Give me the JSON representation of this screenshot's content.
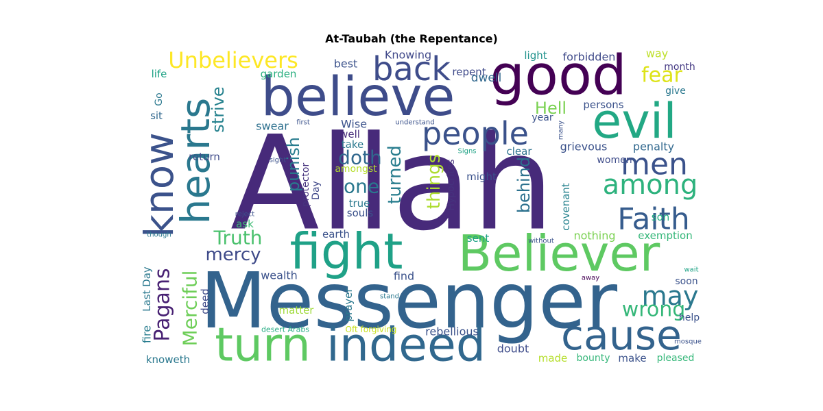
{
  "title": "At-Taubah (the Repentance)",
  "palette": "viridis",
  "words": [
    {
      "text": "Allah",
      "color": "#472a7a"
    },
    {
      "text": "Messenger",
      "color": "#33638d"
    },
    {
      "text": "believe",
      "color": "#3e4c8a"
    },
    {
      "text": "good",
      "color": "#440154"
    },
    {
      "text": "evil",
      "color": "#22a884"
    },
    {
      "text": "Believer",
      "color": "#5ec962"
    },
    {
      "text": "fight",
      "color": "#1fa187"
    },
    {
      "text": "indeed",
      "color": "#31688e"
    },
    {
      "text": "turn",
      "color": "#5ec962"
    },
    {
      "text": "cause",
      "color": "#33638d"
    },
    {
      "text": "hearts",
      "color": "#2a788e"
    },
    {
      "text": "know",
      "color": "#3b528b"
    },
    {
      "text": "back",
      "color": "#3e4c8a"
    },
    {
      "text": "people",
      "color": "#3b528b"
    },
    {
      "text": "men",
      "color": "#3b528b"
    },
    {
      "text": "among",
      "color": "#2db27d"
    },
    {
      "text": "Faith",
      "color": "#365c8d"
    },
    {
      "text": "may",
      "color": "#2a788e"
    },
    {
      "text": "Unbelievers",
      "color": "#fde725"
    },
    {
      "text": "fear",
      "color": "#dde318"
    },
    {
      "text": "wrong",
      "color": "#35b779"
    },
    {
      "text": "Pagans",
      "color": "#482173"
    },
    {
      "text": "Merciful",
      "color": "#6ece58"
    },
    {
      "text": "Truth",
      "color": "#4ac16d"
    },
    {
      "text": "mercy",
      "color": "#3e4a89"
    },
    {
      "text": "strive",
      "color": "#26828e"
    },
    {
      "text": "doth",
      "color": "#31688e"
    },
    {
      "text": "one",
      "color": "#2a788e"
    },
    {
      "text": "turned",
      "color": "#287d8e"
    },
    {
      "text": "punish",
      "color": "#287c8e"
    },
    {
      "text": "things",
      "color": "#addc30"
    },
    {
      "text": "behind",
      "color": "#2c718e"
    },
    {
      "text": "Hell",
      "color": "#7ad151"
    },
    {
      "text": "Knowing",
      "color": "#3f4889"
    },
    {
      "text": "best",
      "color": "#3b528b"
    },
    {
      "text": "garden",
      "color": "#29af7f"
    },
    {
      "text": "life",
      "color": "#20a386"
    },
    {
      "text": "Go",
      "color": "#2a788e"
    },
    {
      "text": "sit",
      "color": "#31688e"
    },
    {
      "text": "swear",
      "color": "#2d708e"
    },
    {
      "text": "Wise",
      "color": "#3b528b"
    },
    {
      "text": "well",
      "color": "#472c7a"
    },
    {
      "text": "take",
      "color": "#2a788e"
    },
    {
      "text": "amongst",
      "color": "#b5de2b"
    },
    {
      "text": "return",
      "color": "#3e4a89"
    },
    {
      "text": "protector",
      "color": "#46337e"
    },
    {
      "text": "Day",
      "color": "#3f4788"
    },
    {
      "text": "true",
      "color": "#2a788e"
    },
    {
      "text": "souls",
      "color": "#3b528b"
    },
    {
      "text": "ask",
      "color": "#3dbc74"
    },
    {
      "text": "dwell",
      "color": "#31688e"
    },
    {
      "text": "repent",
      "color": "#3e4989"
    },
    {
      "text": "light",
      "color": "#20928c"
    },
    {
      "text": "forbidden",
      "color": "#3e4989"
    },
    {
      "text": "way",
      "color": "#bddf26"
    },
    {
      "text": "month",
      "color": "#443983"
    },
    {
      "text": "give",
      "color": "#2a788e"
    },
    {
      "text": "persons",
      "color": "#3b528b"
    },
    {
      "text": "year",
      "color": "#3b528b"
    },
    {
      "text": "grievous",
      "color": "#3b528b"
    },
    {
      "text": "penalty",
      "color": "#31688e"
    },
    {
      "text": "clear",
      "color": "#2c718e"
    },
    {
      "text": "women",
      "color": "#3e4c8a"
    },
    {
      "text": "Hypocrites",
      "color": "#46337e"
    },
    {
      "text": "might",
      "color": "#3b528b"
    },
    {
      "text": "covenant",
      "color": "#26828e"
    },
    {
      "text": "son",
      "color": "#25ac82"
    },
    {
      "text": "nothing",
      "color": "#7ad151"
    },
    {
      "text": "exemption",
      "color": "#35b779"
    },
    {
      "text": "sent",
      "color": "#20a386"
    },
    {
      "text": "earth",
      "color": "#3b528b"
    },
    {
      "text": "wealth",
      "color": "#3b528b"
    },
    {
      "text": "find",
      "color": "#3b528b"
    },
    {
      "text": "prayer",
      "color": "#2a788e"
    },
    {
      "text": "matter",
      "color": "#9fda3a"
    },
    {
      "text": "deed",
      "color": "#3e4a89"
    },
    {
      "text": "fire",
      "color": "#287c8e"
    },
    {
      "text": "Last Day",
      "color": "#2a788e"
    },
    {
      "text": "soon",
      "color": "#3b528b"
    },
    {
      "text": "help",
      "color": "#3b528b"
    },
    {
      "text": "rebellious",
      "color": "#3b528b"
    },
    {
      "text": "doubt",
      "color": "#3e4c8a"
    },
    {
      "text": "made",
      "color": "#b5de2b"
    },
    {
      "text": "bounty",
      "color": "#34b679"
    },
    {
      "text": "make",
      "color": "#3b528b"
    },
    {
      "text": "pleased",
      "color": "#35b779"
    },
    {
      "text": "knoweth",
      "color": "#2a788e"
    },
    {
      "text": "Oft forgiving",
      "color": "#c8e020"
    },
    {
      "text": "desert Arabs",
      "color": "#25ab82"
    },
    {
      "text": "first",
      "color": "#3b528b"
    },
    {
      "text": "understand",
      "color": "#3b528b"
    },
    {
      "text": "many",
      "color": "#3b528b"
    },
    {
      "text": "Signs",
      "color": "#20a386"
    },
    {
      "text": "sight",
      "color": "#3b528b"
    },
    {
      "text": "reject",
      "color": "#3b528b"
    },
    {
      "text": "though",
      "color": "#2a788e"
    },
    {
      "text": "without",
      "color": "#3b528b"
    },
    {
      "text": "wait",
      "color": "#20a386"
    },
    {
      "text": "away",
      "color": "#440154"
    },
    {
      "text": "stand",
      "color": "#2a788e"
    },
    {
      "text": "mosque",
      "color": "#3b528b"
    }
  ]
}
